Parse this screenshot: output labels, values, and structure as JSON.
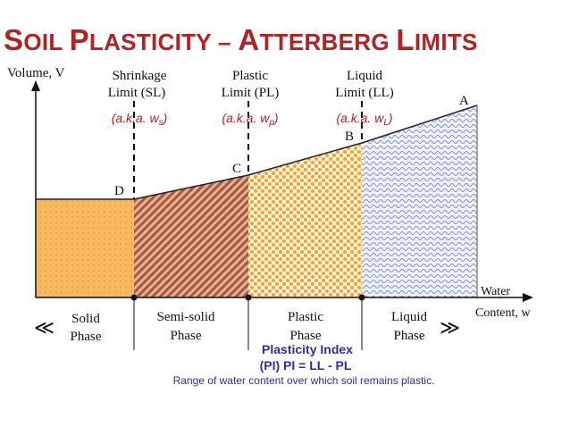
{
  "title": {
    "w1_big": "S",
    "w1_rest": "OIL",
    "w2_big": "P",
    "w2_rest": "LASTICITY",
    "dash": "–",
    "w3_big": "A",
    "w3_rest": "TTERBERG",
    "w4_big": "L",
    "w4_rest": "IMITS"
  },
  "axes": {
    "y_label": "Volume, V",
    "x_label_line1": "Water",
    "x_label_line2": "Content, w"
  },
  "limits": {
    "sl": {
      "line1": "Shrinkage",
      "line2": "Limit (SL)",
      "aka": "(a.k.a. w",
      "sub": "s",
      "close": ")"
    },
    "pl": {
      "line1": "Plastic",
      "line2": "Limit (PL)",
      "aka": "(a.k.a. w",
      "sub": "p",
      "close": ")"
    },
    "ll": {
      "line1": "Liquid",
      "line2": "Limit (LL)",
      "aka": "(a.k.a. w",
      "sub": "L",
      "close": ")"
    }
  },
  "points": {
    "a": "A",
    "b": "B",
    "c": "C",
    "d": "D"
  },
  "phases": {
    "solid": {
      "line1": "Solid",
      "line2": "Phase"
    },
    "semisolid": {
      "line1": "Semi-solid",
      "line2": "Phase"
    },
    "plastic": {
      "line1": "Plastic",
      "line2": "Phase"
    },
    "liquid": {
      "line1": "Liquid",
      "line2": "Phase"
    }
  },
  "phase_arrows": {
    "left": "≪",
    "right": "≫"
  },
  "plasticity_index": {
    "line1": "Plasticity Index",
    "line2": "(PI)  PI = LL - PL",
    "range": "Range of water content over which soil remains plastic."
  },
  "colors": {
    "title": "#b22222",
    "solid_fill": "#f7b861",
    "semisolid_fill": "#b06a4e",
    "plastic_fill": "#f6a730",
    "liquid_fill": "#7d8fc4",
    "pi_text": "#2b2fa0"
  }
}
